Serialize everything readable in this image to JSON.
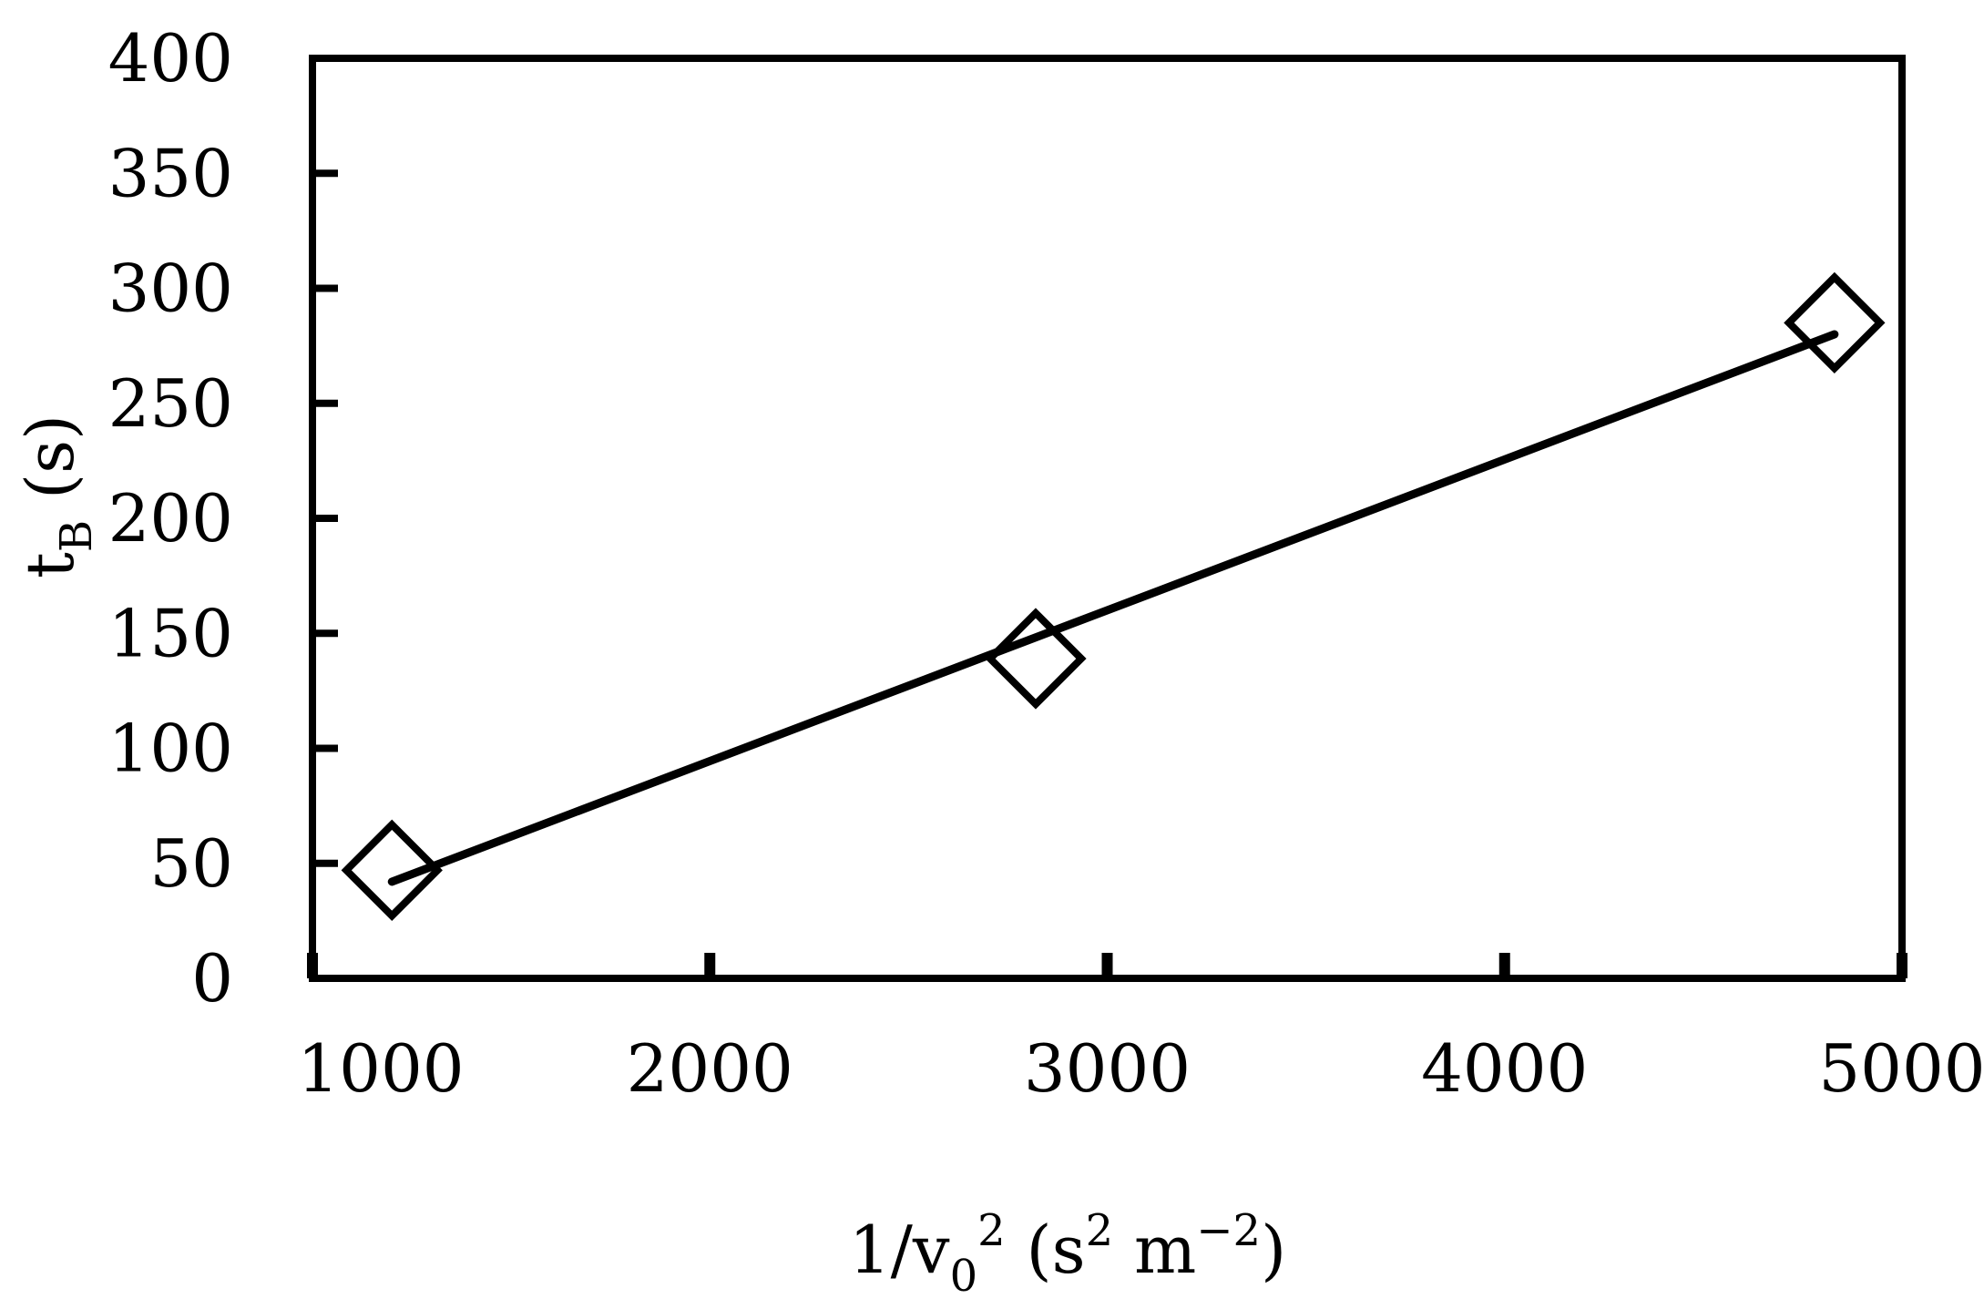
{
  "chart_data": {
    "type": "scatter",
    "title": "",
    "xlabel": {
      "prefix": "1/v",
      "sub": "0",
      "sup": "2",
      "mid": " (s",
      "unit_sup": "2",
      "unit_mid": " m",
      "unit_sup2": "−2",
      "suffix": ")"
    },
    "ylabel": {
      "main": "t",
      "sub": "B",
      "suffix": " (s)"
    },
    "xlim": [
      1000,
      5000
    ],
    "ylim": [
      0,
      400
    ],
    "x_ticks": [
      1000,
      2000,
      3000,
      4000,
      5000
    ],
    "y_ticks": [
      0,
      50,
      100,
      150,
      200,
      250,
      300,
      350,
      400
    ],
    "x_tick_labels": [
      "1000",
      "2000",
      "3000",
      "4000",
      "5000"
    ],
    "y_tick_labels": [
      "0",
      "50",
      "100",
      "150",
      "200",
      "250",
      "300",
      "350",
      "400"
    ],
    "series": [
      {
        "marker": "open-diamond",
        "points": [
          {
            "x": 1200,
            "y": 47
          },
          {
            "x": 2820,
            "y": 139
          },
          {
            "x": 4830,
            "y": 285
          }
        ]
      }
    ],
    "trendline": {
      "type": "linear",
      "from": {
        "x": 1200,
        "y": 42
      },
      "to": {
        "x": 4830,
        "y": 280
      }
    },
    "grid": false,
    "legend": "none",
    "colors": {
      "axis": "#000000",
      "series": "#000000",
      "background": "#ffffff"
    }
  }
}
